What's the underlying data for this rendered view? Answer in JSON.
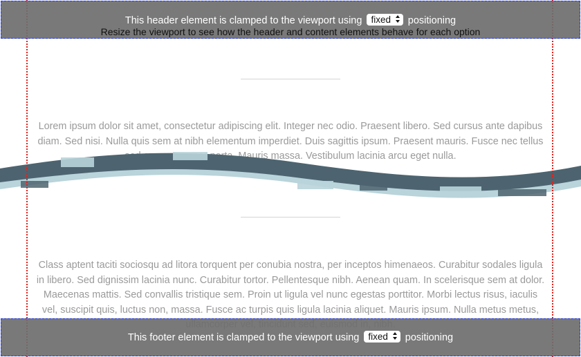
{
  "header": {
    "text_before": "This header element is clamped to the viewport using",
    "select_value": "fixed",
    "text_after": "positioning",
    "subtitle": "Resize the viewport to see how the header and content elements behave for each option"
  },
  "content": {
    "paragraph_1": "Lorem ipsum dolor sit amet, consectetur adipiscing elit. Integer nec odio. Praesent libero. Sed cursus ante dapibus diam. Sed nisi. Nulla quis sem at nibh elementum imperdiet. Duis sagittis ipsum. Praesent mauris. Fusce nec tellus sed augue semper porta. Mauris massa. Vestibulum lacinia arcu eget nulla.",
    "paragraph_2": "Class aptent taciti sociosqu ad litora torquent per conubia nostra, per inceptos himenaeos. Curabitur sodales ligula in libero. Sed dignissim lacinia nunc. Curabitur tortor. Pellentesque nibh. Aenean quam. In scelerisque sem at dolor. Maecenas mattis. Sed convallis tristique sem. Proin ut ligula vel nunc egestas porttitor. Morbi lectus risus, iaculis vel, suscipit quis, luctus non, massa. Fusce ac turpis quis ligula lacinia aliquet. Mauris ipsum. Nulla metus metus, ullamcorper vel, tincidunt sed, euismod in, nibh."
  },
  "footer": {
    "text_before": "This footer element is clamped to the viewport using",
    "select_value": "fixed",
    "text_after": "positioning"
  },
  "colors": {
    "bar_background": "#6e6e6e",
    "bar_border": "#2a3fd6",
    "guide_line": "#e0201a",
    "wave_dark": "#4d6470",
    "wave_light": "#b9d4da",
    "paragraph_text": "#9a9a9a"
  }
}
